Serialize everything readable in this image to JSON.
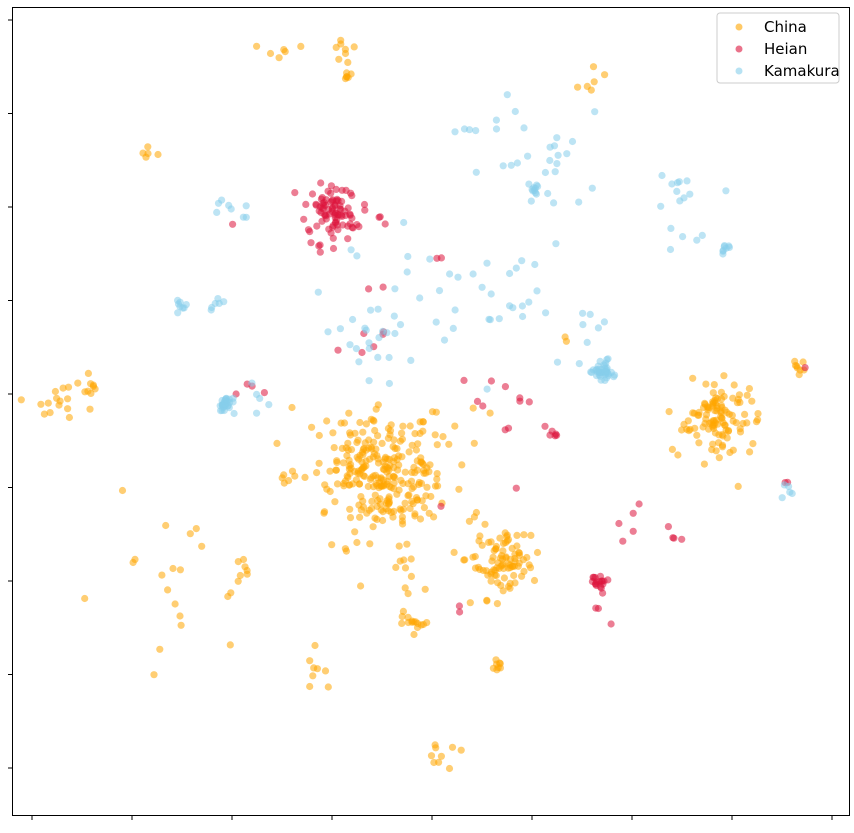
{
  "chart_data": {
    "type": "scatter",
    "title": "",
    "xlabel": "",
    "ylabel": "",
    "xlim": [
      0,
      1
    ],
    "ylim": [
      0,
      1
    ],
    "grid": false,
    "tick_labels_shown": false,
    "legend": {
      "placement": "top-right",
      "entries": [
        "China",
        "Heian",
        "Kamakura"
      ]
    },
    "series": [
      {
        "name": "China",
        "color": "#FFA500",
        "alpha": 0.55,
        "clusters": [
          {
            "x": 0.315,
            "y": 0.945,
            "s": 0.012,
            "n": 6,
            "seed": 1
          },
          {
            "x": 0.395,
            "y": 0.95,
            "s": 0.012,
            "n": 8,
            "seed": 2
          },
          {
            "x": 0.4,
            "y": 0.914,
            "s": 0.004,
            "n": 6,
            "seed": 3
          },
          {
            "x": 0.69,
            "y": 0.912,
            "s": 0.01,
            "n": 6,
            "seed": 4
          },
          {
            "x": 0.163,
            "y": 0.821,
            "s": 0.006,
            "n": 5,
            "seed": 5
          },
          {
            "x": 0.055,
            "y": 0.521,
            "s": 0.02,
            "n": 18,
            "seed": 6
          },
          {
            "x": 0.095,
            "y": 0.528,
            "s": 0.004,
            "n": 6,
            "seed": 7
          },
          {
            "x": 0.845,
            "y": 0.487,
            "s": 0.022,
            "n": 110,
            "seed": 8
          },
          {
            "x": 0.94,
            "y": 0.555,
            "s": 0.004,
            "n": 8,
            "seed": 9
          },
          {
            "x": 0.445,
            "y": 0.418,
            "s": 0.035,
            "n": 280,
            "seed": 10
          },
          {
            "x": 0.585,
            "y": 0.31,
            "s": 0.02,
            "n": 90,
            "seed": 11
          },
          {
            "x": 0.48,
            "y": 0.24,
            "s": 0.006,
            "n": 14,
            "seed": 12
          },
          {
            "x": 0.515,
            "y": 0.49,
            "s": 0.025,
            "n": 8,
            "seed": 13
          },
          {
            "x": 0.33,
            "y": 0.418,
            "s": 0.006,
            "n": 6,
            "seed": 14
          },
          {
            "x": 0.205,
            "y": 0.315,
            "s": 0.05,
            "n": 22,
            "seed": 15
          },
          {
            "x": 0.275,
            "y": 0.305,
            "s": 0.005,
            "n": 5,
            "seed": 16
          },
          {
            "x": 0.47,
            "y": 0.305,
            "s": 0.015,
            "n": 10,
            "seed": 17
          },
          {
            "x": 0.555,
            "y": 0.365,
            "s": 0.012,
            "n": 6,
            "seed": 18
          },
          {
            "x": 0.365,
            "y": 0.183,
            "s": 0.012,
            "n": 8,
            "seed": 19
          },
          {
            "x": 0.58,
            "y": 0.187,
            "s": 0.004,
            "n": 8,
            "seed": 20
          },
          {
            "x": 0.51,
            "y": 0.077,
            "s": 0.012,
            "n": 9,
            "seed": 21
          },
          {
            "x": 0.66,
            "y": 0.589,
            "s": 0.003,
            "n": 2,
            "seed": 22
          },
          {
            "x": 0.83,
            "y": 0.531,
            "s": 0.01,
            "n": 4,
            "seed": 23
          }
        ]
      },
      {
        "name": "Heian",
        "color": "#DC143C",
        "alpha": 0.55,
        "clusters": [
          {
            "x": 0.385,
            "y": 0.747,
            "s": 0.016,
            "n": 90,
            "seed": 31
          },
          {
            "x": 0.44,
            "y": 0.733,
            "s": 0.006,
            "n": 3,
            "seed": 32
          },
          {
            "x": 0.263,
            "y": 0.729,
            "s": 0.002,
            "n": 1,
            "seed": 33
          },
          {
            "x": 0.355,
            "y": 0.705,
            "s": 0.004,
            "n": 1,
            "seed": 34
          },
          {
            "x": 0.508,
            "y": 0.69,
            "s": 0.003,
            "n": 2,
            "seed": 35
          },
          {
            "x": 0.43,
            "y": 0.655,
            "s": 0.004,
            "n": 2,
            "seed": 36
          },
          {
            "x": 0.42,
            "y": 0.585,
            "s": 0.015,
            "n": 6,
            "seed": 37
          },
          {
            "x": 0.29,
            "y": 0.53,
            "s": 0.008,
            "n": 4,
            "seed": 38
          },
          {
            "x": 0.57,
            "y": 0.53,
            "s": 0.025,
            "n": 10,
            "seed": 39
          },
          {
            "x": 0.65,
            "y": 0.473,
            "s": 0.006,
            "n": 6,
            "seed": 40
          },
          {
            "x": 0.6,
            "y": 0.403,
            "s": 0.003,
            "n": 1,
            "seed": 41
          },
          {
            "x": 0.515,
            "y": 0.378,
            "s": 0.003,
            "n": 1,
            "seed": 42
          },
          {
            "x": 0.74,
            "y": 0.369,
            "s": 0.008,
            "n": 4,
            "seed": 43
          },
          {
            "x": 0.79,
            "y": 0.344,
            "s": 0.006,
            "n": 4,
            "seed": 44
          },
          {
            "x": 0.728,
            "y": 0.339,
            "s": 0.002,
            "n": 1,
            "seed": 45
          },
          {
            "x": 0.7,
            "y": 0.29,
            "s": 0.005,
            "n": 18,
            "seed": 46
          },
          {
            "x": 0.7,
            "y": 0.258,
            "s": 0.003,
            "n": 2,
            "seed": 47
          },
          {
            "x": 0.715,
            "y": 0.24,
            "s": 0.003,
            "n": 1,
            "seed": 48
          },
          {
            "x": 0.535,
            "y": 0.256,
            "s": 0.004,
            "n": 2,
            "seed": 49
          },
          {
            "x": 0.945,
            "y": 0.555,
            "s": 0.001,
            "n": 1,
            "seed": 50
          },
          {
            "x": 0.93,
            "y": 0.411,
            "s": 0.003,
            "n": 2,
            "seed": 51
          }
        ]
      },
      {
        "name": "Kamakura",
        "color": "#87CEEB",
        "alpha": 0.55,
        "clusters": [
          {
            "x": 0.625,
            "y": 0.81,
            "s": 0.04,
            "n": 26,
            "seed": 61
          },
          {
            "x": 0.625,
            "y": 0.776,
            "s": 0.004,
            "n": 10,
            "seed": 62
          },
          {
            "x": 0.8,
            "y": 0.745,
            "s": 0.03,
            "n": 16,
            "seed": 63
          },
          {
            "x": 0.85,
            "y": 0.7,
            "s": 0.004,
            "n": 8,
            "seed": 64
          },
          {
            "x": 0.265,
            "y": 0.75,
            "s": 0.01,
            "n": 8,
            "seed": 65
          },
          {
            "x": 0.2,
            "y": 0.631,
            "s": 0.004,
            "n": 8,
            "seed": 66
          },
          {
            "x": 0.245,
            "y": 0.631,
            "s": 0.005,
            "n": 6,
            "seed": 67
          },
          {
            "x": 0.255,
            "y": 0.51,
            "s": 0.004,
            "n": 30,
            "seed": 68
          },
          {
            "x": 0.295,
            "y": 0.518,
            "s": 0.01,
            "n": 5,
            "seed": 69
          },
          {
            "x": 0.435,
            "y": 0.655,
            "s": 0.05,
            "n": 22,
            "seed": 70
          },
          {
            "x": 0.58,
            "y": 0.64,
            "s": 0.05,
            "n": 24,
            "seed": 71
          },
          {
            "x": 0.435,
            "y": 0.575,
            "s": 0.03,
            "n": 12,
            "seed": 72
          },
          {
            "x": 0.705,
            "y": 0.548,
            "s": 0.006,
            "n": 40,
            "seed": 73
          },
          {
            "x": 0.69,
            "y": 0.595,
            "s": 0.012,
            "n": 6,
            "seed": 74
          },
          {
            "x": 0.925,
            "y": 0.4,
            "s": 0.006,
            "n": 5,
            "seed": 75
          },
          {
            "x": 0.61,
            "y": 0.68,
            "s": 0.008,
            "n": 3,
            "seed": 76
          },
          {
            "x": 0.54,
            "y": 0.85,
            "s": 0.01,
            "n": 4,
            "seed": 77
          }
        ]
      }
    ]
  }
}
